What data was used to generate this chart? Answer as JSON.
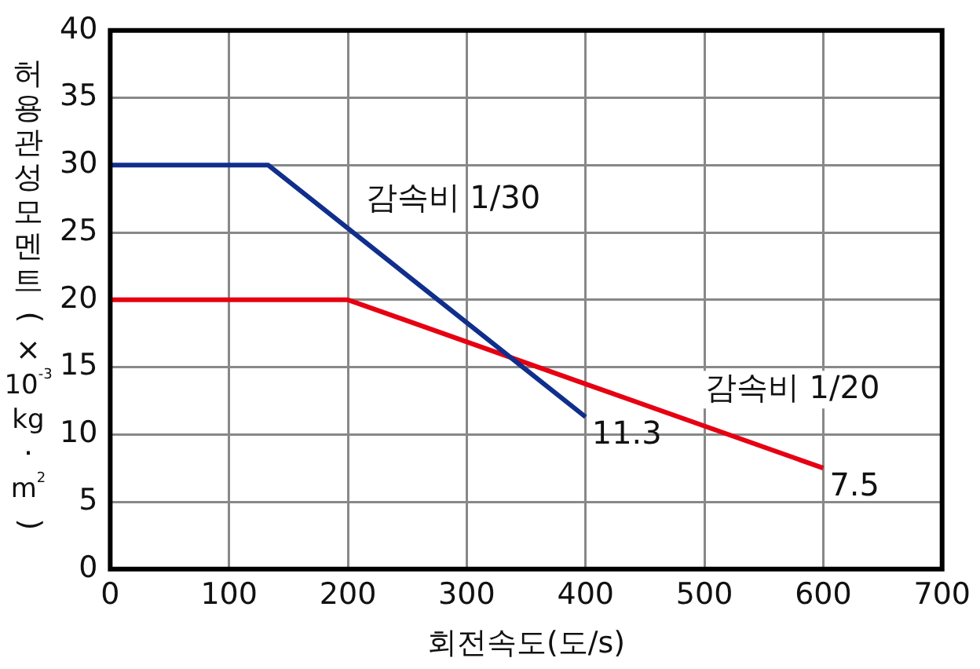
{
  "chart_data": {
    "type": "line",
    "xlabel": "회전속도(도/s)",
    "ylabel": "허용관성모멘트(×10$^{-3}$kg·m$^{2}$)",
    "xlim": [
      0,
      700
    ],
    "xticks": [
      0,
      100,
      200,
      300,
      400,
      500,
      600,
      700
    ],
    "ylim": [
      0,
      40
    ],
    "yticks": [
      0,
      5,
      10,
      15,
      20,
      25,
      30,
      35,
      40
    ],
    "grid": true,
    "marker": "none",
    "line_style": "solid",
    "series": [
      {
        "name": "감속비 1/30",
        "color": "#102e8c",
        "x": [
          0,
          133,
          400
        ],
        "values": [
          30,
          30,
          11.3
        ],
        "value_labels": [
          null,
          null,
          "11.3"
        ]
      },
      {
        "name": "감속비 1/20",
        "color": "#e60012",
        "x": [
          0,
          200,
          600
        ],
        "values": [
          20,
          20,
          7.5
        ],
        "value_labels": [
          null,
          null,
          "7.5"
        ]
      }
    ]
  }
}
